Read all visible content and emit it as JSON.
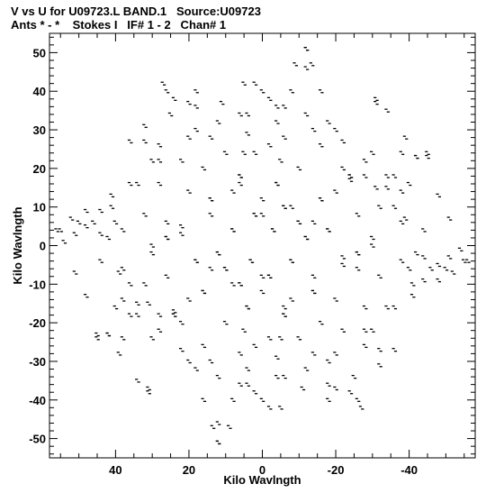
{
  "header": {
    "title_line1": "V vs U for U09723.L BAND.1   Source:U09723",
    "title_line2": "Ants * - *    Stokes I   IF# 1 - 2   Chan# 1"
  },
  "chart_data": {
    "type": "scatter",
    "title": "V vs U for U09723.L BAND.1   Source:U09723",
    "subtitle": "Ants * - *    Stokes I   IF# 1 - 2   Chan# 1",
    "xlabel": "Kilo Wavlngth",
    "ylabel": "Kilo Wavlngth",
    "xlim": [
      58,
      -58
    ],
    "ylim": [
      -55,
      55
    ],
    "x_reversed": true,
    "xticks": [
      40,
      20,
      0,
      -20,
      -40
    ],
    "yticks": [
      -50,
      -40,
      -30,
      -20,
      -10,
      0,
      10,
      20,
      30,
      40,
      50
    ],
    "grid": false,
    "legend": "none",
    "marker_color": "#000000",
    "marker": "small vertical dash pairs",
    "points": [
      [
        -12,
        51
      ],
      [
        -13.5,
        47
      ],
      [
        5,
        42
      ],
      [
        -8,
        40
      ],
      [
        -31,
        38
      ],
      [
        27,
        42
      ],
      [
        18,
        36
      ],
      [
        -39,
        28
      ],
      [
        -45,
        23
      ],
      [
        -42,
        23
      ],
      [
        32,
        27
      ],
      [
        -24,
        17
      ],
      [
        -34,
        15
      ],
      [
        -31,
        15
      ],
      [
        -36,
        10
      ],
      [
        -48,
        13
      ],
      [
        -51,
        7
      ],
      [
        41,
        13
      ],
      [
        48,
        9
      ],
      [
        52,
        7
      ],
      [
        55,
        4
      ],
      [
        44,
        3
      ],
      [
        42,
        2
      ],
      [
        22,
        3
      ],
      [
        -22,
        -5
      ],
      [
        -40,
        -6
      ],
      [
        -46,
        -6
      ],
      [
        -48,
        -5
      ],
      [
        -51,
        -3
      ],
      [
        -54,
        -1
      ],
      [
        -56,
        -4
      ],
      [
        -50,
        -6
      ],
      [
        -44,
        -9
      ],
      [
        -41,
        -10
      ],
      [
        44,
        -4
      ],
      [
        39,
        -7
      ],
      [
        38,
        -14
      ],
      [
        40,
        -16
      ],
      [
        45,
        -24
      ],
      [
        42,
        -23
      ],
      [
        38,
        -24
      ],
      [
        34,
        -35
      ],
      [
        31,
        -37
      ],
      [
        22,
        -27
      ],
      [
        -28,
        -26
      ],
      [
        -36,
        -27
      ],
      [
        -32,
        -31
      ],
      [
        -20,
        -37
      ],
      [
        -18,
        -40
      ],
      [
        -25,
        -34
      ],
      [
        12,
        -46
      ],
      [
        12,
        -51
      ],
      [
        9,
        -47
      ],
      [
        -11,
        -37
      ],
      [
        -24,
        -38
      ],
      [
        -26,
        -40
      ],
      [
        16,
        -40
      ],
      [
        4,
        -32
      ],
      [
        -4,
        -29
      ],
      [
        5,
        -22
      ],
      [
        -5,
        -24
      ],
      [
        0,
        -12
      ],
      [
        -8,
        -14
      ],
      [
        8,
        -10
      ],
      [
        14,
        -6
      ],
      [
        -14,
        -8
      ],
      [
        -2,
        26
      ],
      [
        2,
        24
      ],
      [
        -6,
        28
      ],
      [
        6,
        18
      ],
      [
        -10,
        20
      ],
      [
        10,
        24
      ],
      [
        -16,
        26
      ],
      [
        16,
        20
      ],
      [
        -20,
        14
      ],
      [
        20,
        14
      ],
      [
        -26,
        8
      ],
      [
        26,
        6
      ],
      [
        -30,
        2
      ],
      [
        30,
        0
      ],
      [
        -32,
        -8
      ],
      [
        32,
        -10
      ],
      [
        -28,
        -16
      ],
      [
        28,
        -18
      ],
      [
        -22,
        -22
      ],
      [
        22,
        -20
      ],
      [
        -14,
        -28
      ],
      [
        14,
        -30
      ],
      [
        -6,
        -34
      ],
      [
        6,
        -36
      ],
      [
        0,
        40
      ],
      [
        -4,
        36
      ],
      [
        4,
        34
      ],
      [
        -12,
        34
      ],
      [
        12,
        32
      ],
      [
        -20,
        30
      ],
      [
        20,
        28
      ],
      [
        -28,
        22
      ],
      [
        28,
        22
      ],
      [
        -34,
        18
      ],
      [
        34,
        16
      ],
      [
        -38,
        6
      ],
      [
        38,
        4
      ],
      [
        -36,
        -16
      ],
      [
        36,
        -18
      ],
      [
        -30,
        -22
      ],
      [
        30,
        -24
      ],
      [
        -18,
        -30
      ],
      [
        18,
        -32
      ],
      [
        -2,
        -42
      ],
      [
        2,
        -38
      ],
      [
        0,
        8
      ],
      [
        -3,
        4
      ],
      [
        3,
        -4
      ],
      [
        -6,
        10
      ],
      [
        6,
        -10
      ],
      [
        -10,
        6
      ],
      [
        10,
        -6
      ],
      [
        -12,
        2
      ],
      [
        12,
        -2
      ],
      [
        -8,
        -4
      ],
      [
        8,
        4
      ],
      [
        -16,
        12
      ],
      [
        16,
        -12
      ],
      [
        -24,
        18
      ],
      [
        24,
        -18
      ],
      [
        -4,
        16
      ],
      [
        4,
        -16
      ],
      [
        -2,
        -8
      ],
      [
        2,
        8
      ],
      [
        -18,
        4
      ],
      [
        18,
        -4
      ],
      [
        -26,
        -2
      ],
      [
        26,
        2
      ],
      [
        -6,
        -18
      ],
      [
        6,
        16
      ],
      [
        -14,
        -12
      ],
      [
        14,
        12
      ]
    ]
  }
}
